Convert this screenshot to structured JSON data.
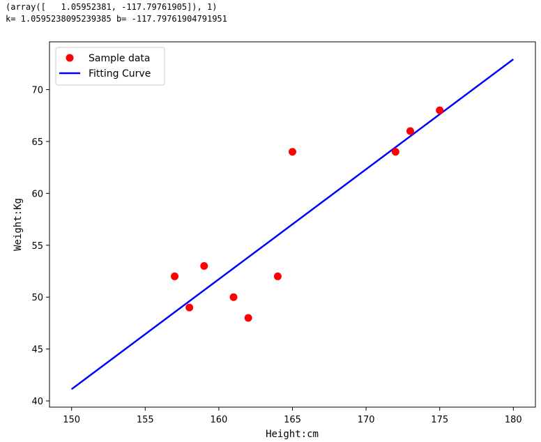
{
  "console": {
    "line1": "(array([   1.05952381, -117.79761905]), 1)",
    "line2": "k= 1.0595238095239385 b= -117.79761904791951"
  },
  "chart_data": {
    "type": "scatter",
    "xlabel": "Height:cm",
    "ylabel": "Weight:Kg",
    "xlim": [
      148.5,
      181.5
    ],
    "ylim": [
      39.4,
      74.6
    ],
    "xticks": [
      150,
      155,
      160,
      165,
      170,
      175,
      180
    ],
    "yticks": [
      40,
      45,
      50,
      55,
      60,
      65,
      70
    ],
    "grid": false,
    "legend": "top-left",
    "series": [
      {
        "name": "Sample data",
        "kind": "scatter",
        "color": "#ff0000",
        "x": [
          157,
          158,
          159,
          161,
          162,
          164,
          165,
          172,
          173,
          175
        ],
        "y": [
          52,
          49,
          53,
          50,
          48,
          52,
          64,
          64,
          66,
          68
        ]
      },
      {
        "name": "Fitting Curve",
        "kind": "line",
        "color": "#0000ff",
        "x": [
          150,
          180
        ],
        "y": [
          41.13,
          72.92
        ]
      }
    ]
  }
}
